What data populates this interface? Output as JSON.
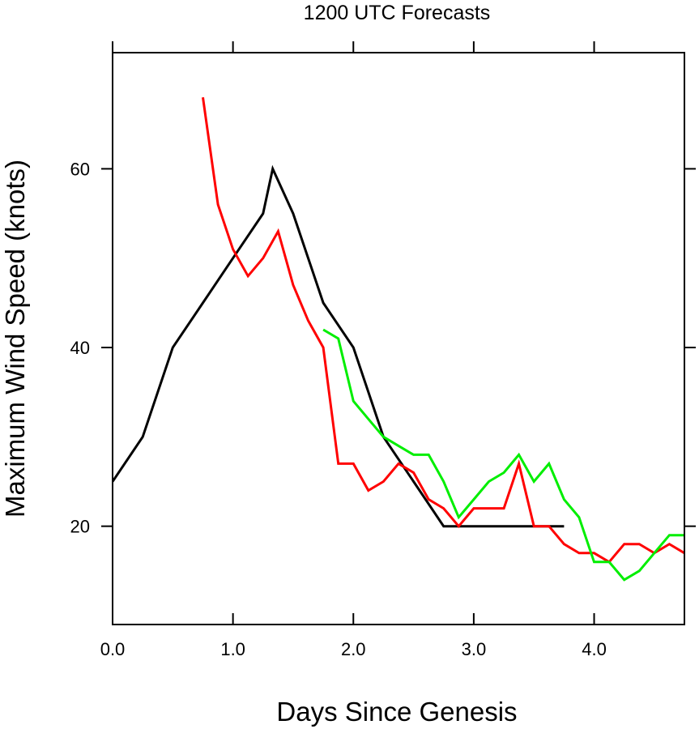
{
  "chart_data": {
    "type": "line",
    "title": "1200 UTC Forecasts",
    "xlabel": "Days Since Genesis",
    "ylabel": "Maximum Wind Speed (knots)",
    "xlim": [
      0,
      4.75
    ],
    "ylim": [
      9,
      73
    ],
    "xticks": [
      0,
      1,
      2,
      3,
      4
    ],
    "xtick_labels": [
      "0.0",
      "1.0",
      "2.0",
      "3.0",
      "4.0"
    ],
    "yticks": [
      20,
      40,
      60
    ],
    "ytick_labels": [
      "20",
      "40",
      "60"
    ],
    "grid": false,
    "legend": "none",
    "series": [
      {
        "color": "#000000",
        "x": [
          0,
          0.25,
          0.5,
          0.75,
          1.0,
          1.25,
          1.33,
          1.5,
          1.75,
          2.0,
          2.25,
          2.5,
          2.75,
          3.0,
          3.25,
          3.5,
          3.75
        ],
        "y": [
          25,
          30,
          40,
          45,
          50,
          55,
          60,
          55,
          45,
          40,
          30,
          25,
          20,
          20,
          20,
          20,
          20
        ]
      },
      {
        "color": "#ff0000",
        "x": [
          0.75,
          0.875,
          1.0,
          1.125,
          1.25,
          1.375,
          1.5,
          1.625,
          1.75,
          1.875,
          2.0,
          2.125,
          2.25,
          2.375,
          2.5,
          2.625,
          2.75,
          2.875,
          3.0,
          3.125,
          3.25,
          3.375,
          3.5,
          3.625,
          3.75,
          3.875,
          4.0,
          4.125,
          4.25,
          4.375,
          4.5,
          4.625,
          4.75
        ],
        "y": [
          68,
          56,
          51,
          48,
          50,
          53,
          47,
          43,
          40,
          27,
          27,
          24,
          25,
          27,
          26,
          23,
          22,
          20,
          22,
          22,
          22,
          27,
          20,
          20,
          18,
          17,
          17,
          16,
          18,
          18,
          17,
          18,
          17
        ]
      },
      {
        "color": "#00ee00",
        "x": [
          1.75,
          1.875,
          2.0,
          2.125,
          2.25,
          2.375,
          2.5,
          2.625,
          2.75,
          2.875,
          3.0,
          3.125,
          3.25,
          3.375,
          3.5,
          3.625,
          3.75,
          3.875,
          4.0,
          4.125,
          4.25,
          4.375,
          4.5,
          4.625,
          4.75
        ],
        "y": [
          42,
          41,
          34,
          32,
          30,
          29,
          28,
          28,
          25,
          21,
          23,
          25,
          26,
          28,
          25,
          27,
          23,
          21,
          16,
          16,
          14,
          15,
          17,
          19,
          19
        ]
      }
    ]
  }
}
